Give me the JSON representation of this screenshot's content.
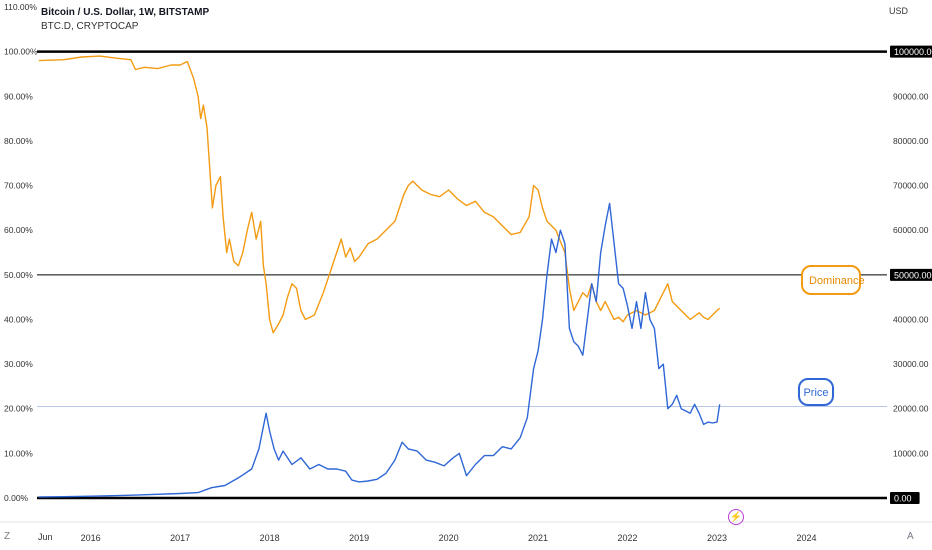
{
  "header": {
    "title": "Bitcoin / U.S. Dollar, 1W, BITSTAMP",
    "subtitle": "BTC.D, CRYPTOCAP",
    "unit": "USD"
  },
  "footer": {
    "left_icon_label": "Z",
    "right_icon_label": "A",
    "first_tick": "Jun",
    "event_icon": "lightning-icon"
  },
  "annotations": {
    "dominance_label": "Dominance",
    "price_label": "Price"
  },
  "colors": {
    "dominance": "#f39b12",
    "price": "#2f67d6",
    "hline": "#000000",
    "priceline": "#b7c7e8",
    "axis_text": "#333333"
  },
  "chart_data": {
    "type": "line",
    "x_ticks": [
      {
        "x": 2016.0,
        "label": "2016"
      },
      {
        "x": 2017.0,
        "label": "2017"
      },
      {
        "x": 2018.0,
        "label": "2018"
      },
      {
        "x": 2019.0,
        "label": "2019"
      },
      {
        "x": 2020.0,
        "label": "2020"
      },
      {
        "x": 2021.0,
        "label": "2021"
      },
      {
        "x": 2022.0,
        "label": "2022"
      },
      {
        "x": 2023.0,
        "label": "2023"
      },
      {
        "x": 2024.0,
        "label": "2024"
      }
    ],
    "xlim": [
      2015.4,
      2024.9
    ],
    "left_axis": {
      "ylim": [
        0,
        110
      ],
      "ticks": [
        0,
        10,
        20,
        30,
        40,
        50,
        60,
        70,
        80,
        90,
        100,
        110
      ],
      "tick_labels": [
        "0.00%",
        "10.00%",
        "20.00%",
        "30.00%",
        "40.00%",
        "50.00%",
        "60.00%",
        "70.00%",
        "80.00%",
        "90.00%",
        "100.00%",
        "110.00%"
      ]
    },
    "right_axis": {
      "ylim": [
        0,
        110000
      ],
      "ticks": [
        10000,
        20000,
        30000,
        40000,
        60000,
        70000,
        80000,
        90000
      ],
      "tick_labels": [
        "10000.00",
        "20000.00",
        "30000.00",
        "40000.00",
        "60000.00",
        "70000.00",
        "80000.00",
        "90000.00"
      ]
    },
    "horizontal_lines": [
      {
        "value": 100000,
        "label": "100000.00",
        "weight": "bold"
      },
      {
        "value": 50000,
        "label": "50000.00",
        "weight": "normal"
      },
      {
        "value": 0,
        "label": "0.00",
        "weight": "bold"
      }
    ],
    "current_price_line": {
      "value": 20500
    },
    "series": [
      {
        "axis": "left",
        "points": [
          [
            2015.42,
            98.0
          ],
          [
            2015.7,
            98.2
          ],
          [
            2015.9,
            98.8
          ],
          [
            2016.1,
            99.0
          ],
          [
            2016.3,
            98.5
          ],
          [
            2016.45,
            98.2
          ],
          [
            2016.5,
            96.0
          ],
          [
            2016.6,
            96.5
          ],
          [
            2016.75,
            96.2
          ],
          [
            2016.9,
            97.0
          ],
          [
            2017.0,
            97.0
          ],
          [
            2017.08,
            97.8
          ],
          [
            2017.15,
            94.0
          ],
          [
            2017.2,
            90.0
          ],
          [
            2017.23,
            85.0
          ],
          [
            2017.26,
            88.0
          ],
          [
            2017.3,
            83.0
          ],
          [
            2017.33,
            74.0
          ],
          [
            2017.36,
            65.0
          ],
          [
            2017.4,
            70.0
          ],
          [
            2017.45,
            72.0
          ],
          [
            2017.48,
            63.0
          ],
          [
            2017.52,
            55.0
          ],
          [
            2017.55,
            58.0
          ],
          [
            2017.6,
            53.0
          ],
          [
            2017.65,
            52.0
          ],
          [
            2017.7,
            55.0
          ],
          [
            2017.75,
            60.0
          ],
          [
            2017.8,
            64.0
          ],
          [
            2017.85,
            58.0
          ],
          [
            2017.9,
            62.0
          ],
          [
            2017.93,
            52.0
          ],
          [
            2017.96,
            48.0
          ],
          [
            2018.0,
            40.0
          ],
          [
            2018.04,
            37.0
          ],
          [
            2018.1,
            39.0
          ],
          [
            2018.15,
            41.0
          ],
          [
            2018.2,
            45.0
          ],
          [
            2018.25,
            48.0
          ],
          [
            2018.3,
            47.0
          ],
          [
            2018.35,
            42.0
          ],
          [
            2018.4,
            40.0
          ],
          [
            2018.5,
            41.0
          ],
          [
            2018.6,
            46.0
          ],
          [
            2018.7,
            52.0
          ],
          [
            2018.75,
            55.0
          ],
          [
            2018.8,
            58.0
          ],
          [
            2018.85,
            54.0
          ],
          [
            2018.9,
            56.0
          ],
          [
            2018.95,
            53.0
          ],
          [
            2019.0,
            54.0
          ],
          [
            2019.1,
            57.0
          ],
          [
            2019.2,
            58.0
          ],
          [
            2019.3,
            60.0
          ],
          [
            2019.4,
            62.0
          ],
          [
            2019.45,
            65.0
          ],
          [
            2019.5,
            68.0
          ],
          [
            2019.55,
            70.0
          ],
          [
            2019.6,
            71.0
          ],
          [
            2019.7,
            69.0
          ],
          [
            2019.8,
            68.0
          ],
          [
            2019.9,
            67.5
          ],
          [
            2020.0,
            69.0
          ],
          [
            2020.1,
            67.0
          ],
          [
            2020.2,
            65.5
          ],
          [
            2020.3,
            66.5
          ],
          [
            2020.4,
            64.0
          ],
          [
            2020.5,
            63.0
          ],
          [
            2020.6,
            61.0
          ],
          [
            2020.7,
            59.0
          ],
          [
            2020.8,
            59.5
          ],
          [
            2020.9,
            63.0
          ],
          [
            2020.95,
            70.0
          ],
          [
            2021.0,
            69.0
          ],
          [
            2021.05,
            65.0
          ],
          [
            2021.1,
            62.0
          ],
          [
            2021.2,
            60.0
          ],
          [
            2021.3,
            55.0
          ],
          [
            2021.35,
            47.0
          ],
          [
            2021.4,
            42.0
          ],
          [
            2021.45,
            44.0
          ],
          [
            2021.5,
            46.0
          ],
          [
            2021.55,
            45.0
          ],
          [
            2021.6,
            48.0
          ],
          [
            2021.65,
            44.0
          ],
          [
            2021.7,
            42.0
          ],
          [
            2021.75,
            44.0
          ],
          [
            2021.8,
            42.0
          ],
          [
            2021.85,
            40.0
          ],
          [
            2021.9,
            40.5
          ],
          [
            2021.95,
            39.5
          ],
          [
            2022.0,
            41.0
          ],
          [
            2022.1,
            42.0
          ],
          [
            2022.2,
            41.0
          ],
          [
            2022.3,
            42.0
          ],
          [
            2022.4,
            46.0
          ],
          [
            2022.45,
            48.0
          ],
          [
            2022.5,
            44.0
          ],
          [
            2022.6,
            42.0
          ],
          [
            2022.7,
            40.0
          ],
          [
            2022.8,
            41.5
          ],
          [
            2022.85,
            40.5
          ],
          [
            2022.9,
            40.0
          ],
          [
            2022.95,
            41.0
          ],
          [
            2023.0,
            42.0
          ],
          [
            2023.03,
            42.5
          ]
        ]
      },
      {
        "axis": "right",
        "points": [
          [
            2015.42,
            250
          ],
          [
            2015.7,
            300
          ],
          [
            2016.0,
            400
          ],
          [
            2016.5,
            650
          ],
          [
            2017.0,
            1000
          ],
          [
            2017.2,
            1200
          ],
          [
            2017.35,
            2300
          ],
          [
            2017.5,
            2800
          ],
          [
            2017.65,
            4500
          ],
          [
            2017.8,
            6500
          ],
          [
            2017.88,
            11000
          ],
          [
            2017.96,
            19000
          ],
          [
            2018.0,
            15000
          ],
          [
            2018.05,
            11000
          ],
          [
            2018.1,
            8500
          ],
          [
            2018.15,
            10500
          ],
          [
            2018.25,
            7500
          ],
          [
            2018.35,
            9000
          ],
          [
            2018.45,
            6500
          ],
          [
            2018.55,
            7500
          ],
          [
            2018.65,
            6500
          ],
          [
            2018.75,
            6500
          ],
          [
            2018.85,
            6000
          ],
          [
            2018.92,
            4000
          ],
          [
            2019.0,
            3600
          ],
          [
            2019.1,
            3800
          ],
          [
            2019.2,
            4200
          ],
          [
            2019.3,
            5500
          ],
          [
            2019.4,
            8500
          ],
          [
            2019.48,
            12500
          ],
          [
            2019.55,
            11000
          ],
          [
            2019.65,
            10500
          ],
          [
            2019.75,
            8500
          ],
          [
            2019.85,
            8000
          ],
          [
            2019.95,
            7200
          ],
          [
            2020.05,
            9000
          ],
          [
            2020.12,
            10000
          ],
          [
            2020.2,
            5000
          ],
          [
            2020.3,
            7500
          ],
          [
            2020.4,
            9500
          ],
          [
            2020.5,
            9500
          ],
          [
            2020.6,
            11500
          ],
          [
            2020.7,
            11000
          ],
          [
            2020.8,
            13500
          ],
          [
            2020.88,
            18000
          ],
          [
            2020.95,
            29000
          ],
          [
            2021.0,
            33000
          ],
          [
            2021.05,
            40000
          ],
          [
            2021.1,
            50000
          ],
          [
            2021.15,
            58000
          ],
          [
            2021.2,
            55000
          ],
          [
            2021.25,
            60000
          ],
          [
            2021.3,
            57000
          ],
          [
            2021.35,
            38000
          ],
          [
            2021.4,
            35000
          ],
          [
            2021.45,
            34000
          ],
          [
            2021.5,
            32000
          ],
          [
            2021.55,
            40000
          ],
          [
            2021.6,
            48000
          ],
          [
            2021.65,
            44000
          ],
          [
            2021.7,
            55000
          ],
          [
            2021.75,
            61000
          ],
          [
            2021.8,
            66000
          ],
          [
            2021.85,
            57000
          ],
          [
            2021.9,
            48000
          ],
          [
            2021.95,
            47000
          ],
          [
            2022.0,
            43000
          ],
          [
            2022.05,
            38000
          ],
          [
            2022.1,
            44000
          ],
          [
            2022.15,
            38000
          ],
          [
            2022.2,
            46000
          ],
          [
            2022.25,
            40000
          ],
          [
            2022.3,
            38000
          ],
          [
            2022.35,
            29000
          ],
          [
            2022.4,
            30000
          ],
          [
            2022.45,
            20000
          ],
          [
            2022.5,
            21000
          ],
          [
            2022.55,
            23000
          ],
          [
            2022.6,
            20000
          ],
          [
            2022.7,
            19000
          ],
          [
            2022.75,
            21000
          ],
          [
            2022.8,
            19000
          ],
          [
            2022.85,
            16500
          ],
          [
            2022.9,
            17000
          ],
          [
            2022.95,
            16800
          ],
          [
            2023.0,
            17000
          ],
          [
            2023.03,
            21000
          ]
        ]
      }
    ]
  }
}
